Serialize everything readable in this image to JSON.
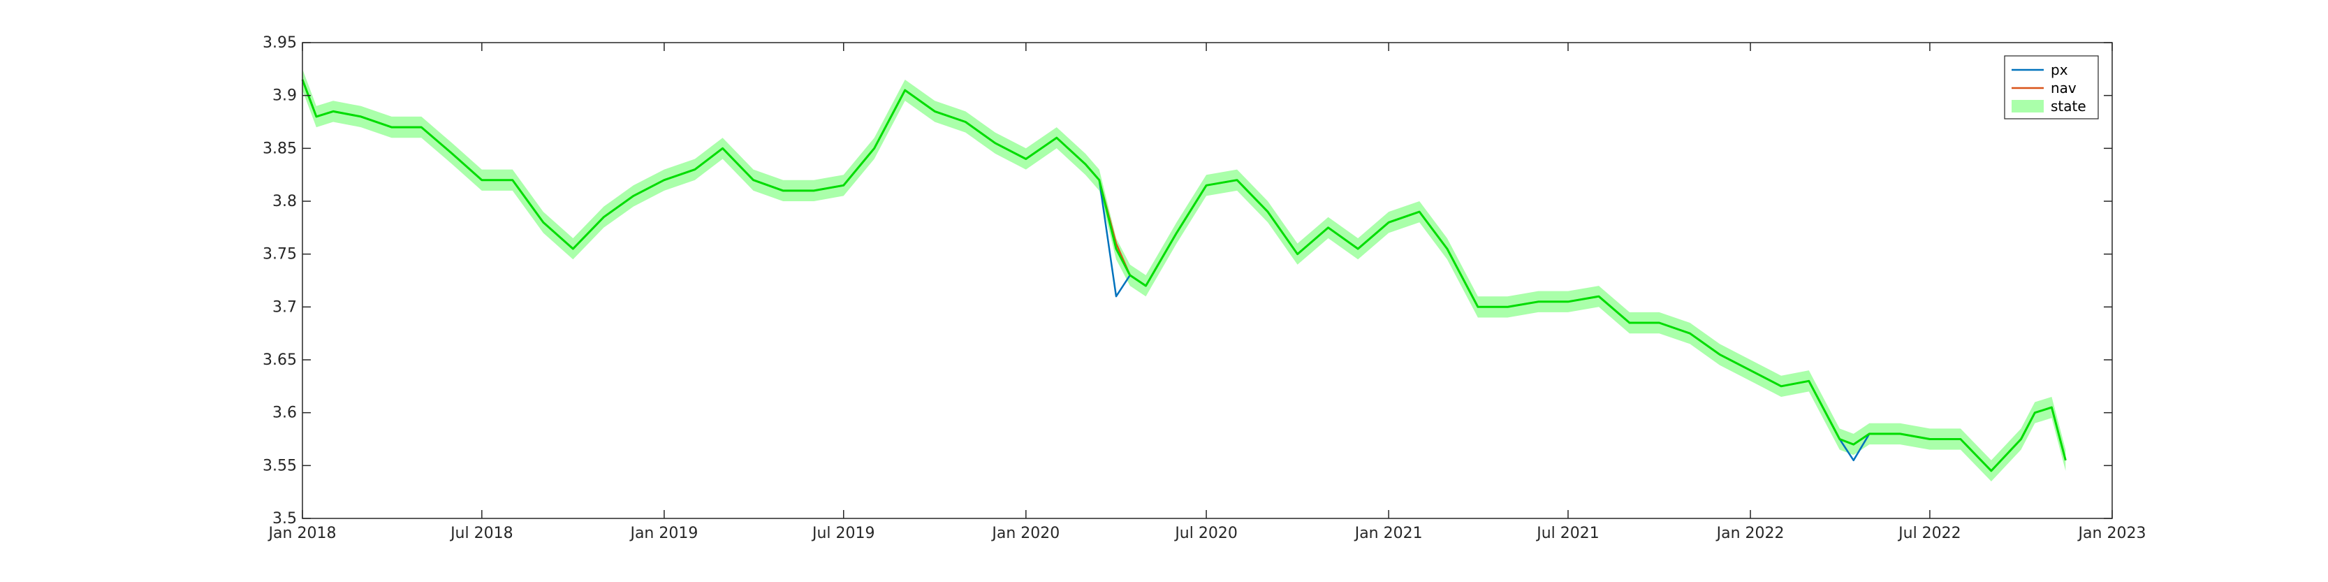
{
  "chart_data": {
    "type": "line",
    "title": "",
    "xlabel": "",
    "ylabel": "",
    "xlim": [
      "2018-01-01",
      "2023-01-01"
    ],
    "ylim": [
      3.5,
      3.95
    ],
    "x_ticks": [
      "2018-01-01",
      "2018-07-01",
      "2019-01-01",
      "2019-07-01",
      "2020-01-01",
      "2020-07-01",
      "2021-01-01",
      "2021-07-01",
      "2022-01-01",
      "2022-07-01",
      "2023-01-01"
    ],
    "x_tick_labels": [
      "Jan 2018",
      "Jul 2018",
      "Jan 2019",
      "Jul 2019",
      "Jan 2020",
      "Jul 2020",
      "Jan 2021",
      "Jul 2021",
      "Jan 2022",
      "Jul 2022",
      "Jan 2023"
    ],
    "y_ticks": [
      3.5,
      3.55,
      3.6,
      3.65,
      3.7,
      3.75,
      3.8,
      3.85,
      3.9,
      3.95
    ],
    "y_tick_labels": [
      "3.5",
      "3.55",
      "3.6",
      "3.65",
      "3.7",
      "3.75",
      "3.8",
      "3.85",
      "3.9",
      "3.95"
    ],
    "grid": false,
    "legend_position": "top-right",
    "colors": {
      "px": "#0072BD",
      "nav": "#D95319",
      "state_line": "#00DD00",
      "state_band": "#AAFFAA"
    },
    "band_halfwidth": 0.01,
    "x": [
      "2018-01-01",
      "2018-01-15",
      "2018-02-01",
      "2018-03-01",
      "2018-04-01",
      "2018-05-01",
      "2018-06-01",
      "2018-07-01",
      "2018-08-01",
      "2018-09-01",
      "2018-10-01",
      "2018-11-01",
      "2018-12-01",
      "2019-01-01",
      "2019-02-01",
      "2019-03-01",
      "2019-04-01",
      "2019-05-01",
      "2019-06-01",
      "2019-07-01",
      "2019-08-01",
      "2019-09-01",
      "2019-10-01",
      "2019-11-01",
      "2019-12-01",
      "2020-01-01",
      "2020-02-01",
      "2020-03-01",
      "2020-03-15",
      "2020-04-01",
      "2020-04-15",
      "2020-05-01",
      "2020-06-01",
      "2020-07-01",
      "2020-08-01",
      "2020-09-01",
      "2020-10-01",
      "2020-11-01",
      "2020-12-01",
      "2021-01-01",
      "2021-02-01",
      "2021-03-01",
      "2021-04-01",
      "2021-05-01",
      "2021-06-01",
      "2021-07-01",
      "2021-08-01",
      "2021-09-01",
      "2021-10-01",
      "2021-11-01",
      "2021-12-01",
      "2022-01-01",
      "2022-02-01",
      "2022-03-01",
      "2022-04-01",
      "2022-04-15",
      "2022-05-01",
      "2022-06-01",
      "2022-07-01",
      "2022-07-15",
      "2022-08-01",
      "2022-09-01",
      "2022-10-01",
      "2022-10-15",
      "2022-11-01",
      "2022-11-15"
    ],
    "series": [
      {
        "name": "px",
        "values": [
          3.915,
          3.88,
          3.885,
          3.88,
          3.87,
          3.87,
          3.845,
          3.82,
          3.82,
          3.78,
          3.755,
          3.785,
          3.805,
          3.82,
          3.83,
          3.85,
          3.82,
          3.81,
          3.81,
          3.815,
          3.85,
          3.905,
          3.885,
          3.875,
          3.855,
          3.84,
          3.86,
          3.835,
          3.82,
          3.71,
          3.73,
          3.72,
          3.77,
          3.815,
          3.82,
          3.79,
          3.75,
          3.775,
          3.755,
          3.78,
          3.79,
          3.755,
          3.7,
          3.7,
          3.705,
          3.705,
          3.71,
          3.685,
          3.685,
          3.675,
          3.655,
          3.64,
          3.625,
          3.63,
          3.575,
          3.555,
          3.58,
          3.58,
          3.575,
          3.575,
          3.575,
          3.545,
          3.575,
          3.6,
          3.605,
          3.555
        ]
      },
      {
        "name": "nav",
        "values": [
          3.915,
          3.88,
          3.885,
          3.88,
          3.87,
          3.87,
          3.845,
          3.82,
          3.82,
          3.78,
          3.755,
          3.785,
          3.805,
          3.82,
          3.83,
          3.85,
          3.82,
          3.81,
          3.81,
          3.815,
          3.85,
          3.905,
          3.885,
          3.875,
          3.855,
          3.84,
          3.86,
          3.835,
          3.82,
          3.76,
          3.73,
          3.72,
          3.77,
          3.815,
          3.82,
          3.79,
          3.75,
          3.775,
          3.755,
          3.78,
          3.79,
          3.755,
          3.7,
          3.7,
          3.705,
          3.705,
          3.71,
          3.685,
          3.685,
          3.675,
          3.655,
          3.64,
          3.625,
          3.63,
          3.575,
          3.57,
          3.58,
          3.58,
          3.575,
          3.575,
          3.575,
          3.545,
          3.575,
          3.6,
          3.605,
          3.555
        ]
      },
      {
        "name": "state",
        "values": [
          3.915,
          3.88,
          3.885,
          3.88,
          3.87,
          3.87,
          3.845,
          3.82,
          3.82,
          3.78,
          3.755,
          3.785,
          3.805,
          3.82,
          3.83,
          3.85,
          3.82,
          3.81,
          3.81,
          3.815,
          3.85,
          3.905,
          3.885,
          3.875,
          3.855,
          3.84,
          3.86,
          3.835,
          3.82,
          3.755,
          3.73,
          3.72,
          3.77,
          3.815,
          3.82,
          3.79,
          3.75,
          3.775,
          3.755,
          3.78,
          3.79,
          3.755,
          3.7,
          3.7,
          3.705,
          3.705,
          3.71,
          3.685,
          3.685,
          3.675,
          3.655,
          3.64,
          3.625,
          3.63,
          3.575,
          3.57,
          3.58,
          3.58,
          3.575,
          3.575,
          3.575,
          3.545,
          3.575,
          3.6,
          3.605,
          3.555
        ]
      }
    ],
    "legend": [
      {
        "label": "px",
        "kind": "line",
        "color": "#0072BD"
      },
      {
        "label": "nav",
        "kind": "line",
        "color": "#D95319"
      },
      {
        "label": "state",
        "kind": "patch",
        "color": "#AAFFAA"
      }
    ]
  }
}
